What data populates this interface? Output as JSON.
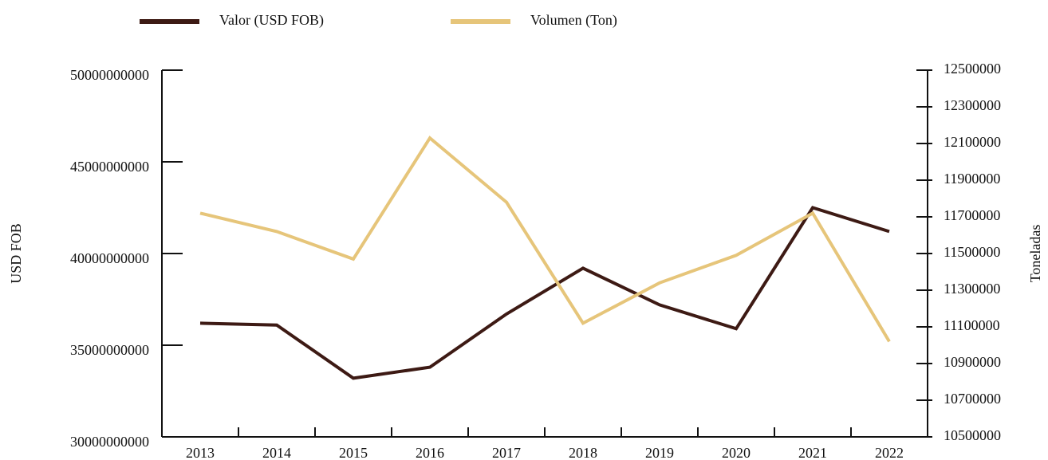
{
  "chart_data": {
    "type": "line",
    "categories": [
      "2013",
      "2014",
      "2015",
      "2016",
      "2017",
      "2018",
      "2019",
      "2020",
      "2021",
      "2022"
    ],
    "series": [
      {
        "name": "Valor (USD FOB)",
        "color": "#3d1a14",
        "values": [
          36200000000,
          36100000000,
          33200000000,
          33800000000,
          36700000000,
          39200000000,
          37200000000,
          35900000000,
          42500000000,
          41200000000
        ]
      },
      {
        "name": "Volumen (Ton)",
        "color": "#e6c57a",
        "axis": "y2",
        "values": [
          11720000,
          11620000,
          11470000,
          12130000,
          11780000,
          11120000,
          11340000,
          11490000,
          11720000,
          11020000
        ]
      }
    ],
    "ylabel": "USD FOB",
    "y2label": "Toneladas",
    "ylim": [
      30000000000,
      50000000000
    ],
    "yticks": [
      30000000000,
      35000000000,
      40000000000,
      45000000000,
      50000000000
    ],
    "y2lim": [
      10500000,
      12500000
    ],
    "y2ticks": [
      10500000,
      10700000,
      10900000,
      11100000,
      11300000,
      11500000,
      11700000,
      11900000,
      12100000,
      12300000,
      12500000
    ],
    "legend": "top"
  }
}
